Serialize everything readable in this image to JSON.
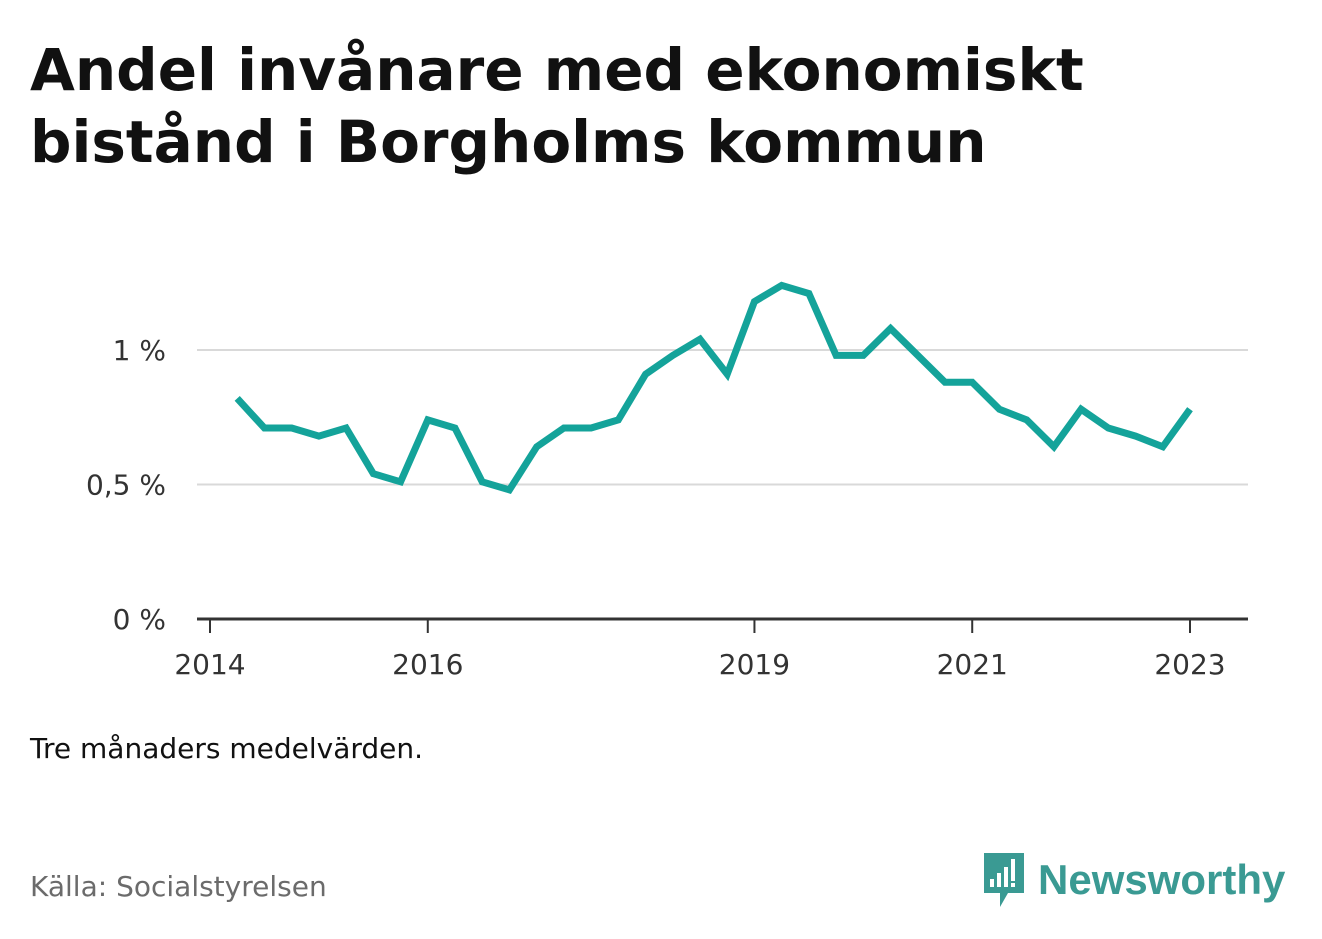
{
  "title": "Andel invånare med ekonomiskt bistånd i Borgholms kommun",
  "note": "Tre månaders medelvärden.",
  "source": "Källa: Socialstyrelsen",
  "logo": {
    "text": "Newsworthy",
    "icon": "newsworthy-bar-chart-icon",
    "color": "#3a9a93"
  },
  "colors": {
    "line": "#14a39a",
    "grid": "#d9d9d9",
    "axis": "#333333"
  },
  "chart_data": {
    "type": "line",
    "title": "Andel invånare med ekonomiskt bistånd i Borgholms kommun",
    "xlabel": "",
    "ylabel": "",
    "ylim": [
      0,
      1.25
    ],
    "yticks": [
      0,
      0.5,
      1
    ],
    "ytick_labels": [
      "0 %",
      "0,5 %",
      "1 %"
    ],
    "xlim": [
      2013.92,
      2023.25
    ],
    "xticks": [
      2014,
      2016,
      2019,
      2021,
      2023
    ],
    "xtick_labels": [
      "2014",
      "2016",
      "2019",
      "2021",
      "2023"
    ],
    "grid": true,
    "legend": "none",
    "series": [
      {
        "values": [
          {
            "x": 2014.25,
            "y": 0.82
          },
          {
            "x": 2014.5,
            "y": 0.71
          },
          {
            "x": 2014.75,
            "y": 0.71
          },
          {
            "x": 2015.0,
            "y": 0.68
          },
          {
            "x": 2015.25,
            "y": 0.71
          },
          {
            "x": 2015.5,
            "y": 0.54
          },
          {
            "x": 2015.75,
            "y": 0.51
          },
          {
            "x": 2016.0,
            "y": 0.74
          },
          {
            "x": 2016.25,
            "y": 0.71
          },
          {
            "x": 2016.5,
            "y": 0.51
          },
          {
            "x": 2016.75,
            "y": 0.48
          },
          {
            "x": 2017.0,
            "y": 0.64
          },
          {
            "x": 2017.25,
            "y": 0.71
          },
          {
            "x": 2017.5,
            "y": 0.71
          },
          {
            "x": 2017.75,
            "y": 0.74
          },
          {
            "x": 2018.0,
            "y": 0.91
          },
          {
            "x": 2018.25,
            "y": 0.98
          },
          {
            "x": 2018.5,
            "y": 1.04
          },
          {
            "x": 2018.75,
            "y": 0.91
          },
          {
            "x": 2019.0,
            "y": 1.18
          },
          {
            "x": 2019.25,
            "y": 1.24
          },
          {
            "x": 2019.5,
            "y": 1.21
          },
          {
            "x": 2019.75,
            "y": 0.98
          },
          {
            "x": 2020.0,
            "y": 0.98
          },
          {
            "x": 2020.25,
            "y": 1.08
          },
          {
            "x": 2020.5,
            "y": 0.98
          },
          {
            "x": 2020.75,
            "y": 0.88
          },
          {
            "x": 2021.0,
            "y": 0.88
          },
          {
            "x": 2021.25,
            "y": 0.78
          },
          {
            "x": 2021.5,
            "y": 0.74
          },
          {
            "x": 2021.75,
            "y": 0.64
          },
          {
            "x": 2022.0,
            "y": 0.78
          },
          {
            "x": 2022.25,
            "y": 0.71
          },
          {
            "x": 2022.5,
            "y": 0.68
          },
          {
            "x": 2022.75,
            "y": 0.64
          },
          {
            "x": 2023.0,
            "y": 0.78
          }
        ]
      }
    ]
  }
}
